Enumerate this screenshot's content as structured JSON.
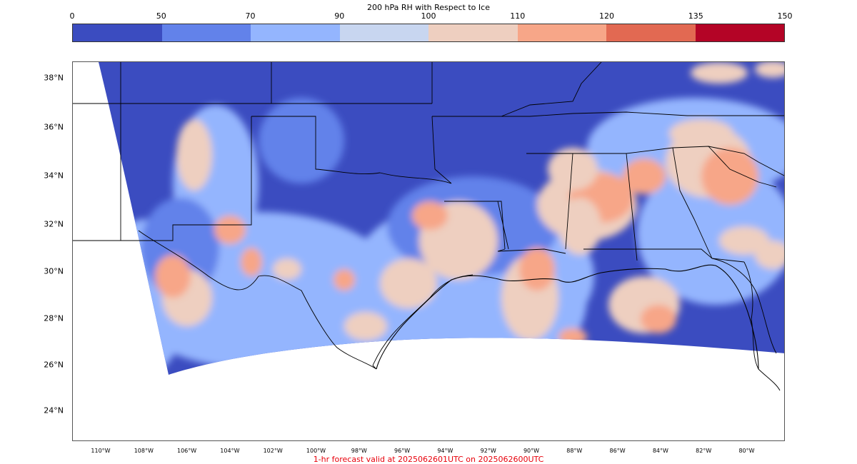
{
  "title": "200 hPa RH with Respect to Ice",
  "colorbar": {
    "ticks": [
      "0",
      "50",
      "70",
      "90",
      "100",
      "110",
      "120",
      "135",
      "150"
    ],
    "colors": [
      "#3b4cc0",
      "#6282ea",
      "#94b5fe",
      "#c8d6f0",
      "#eecfc0",
      "#f7a688",
      "#e26952",
      "#b40426"
    ]
  },
  "lat_labels": [
    "38°N",
    "36°N",
    "34°N",
    "32°N",
    "30°N",
    "28°N",
    "26°N",
    "24°N"
  ],
  "lon_labels": [
    "110°W",
    "108°W",
    "106°W",
    "104°W",
    "102°W",
    "100°W",
    "98°W",
    "96°W",
    "94°W",
    "92°W",
    "90°W",
    "88°W",
    "86°W",
    "84°W",
    "82°W",
    "80°W"
  ],
  "caption": "1-hr forecast valid at 2025062601UTC on 2025062600UTC"
}
